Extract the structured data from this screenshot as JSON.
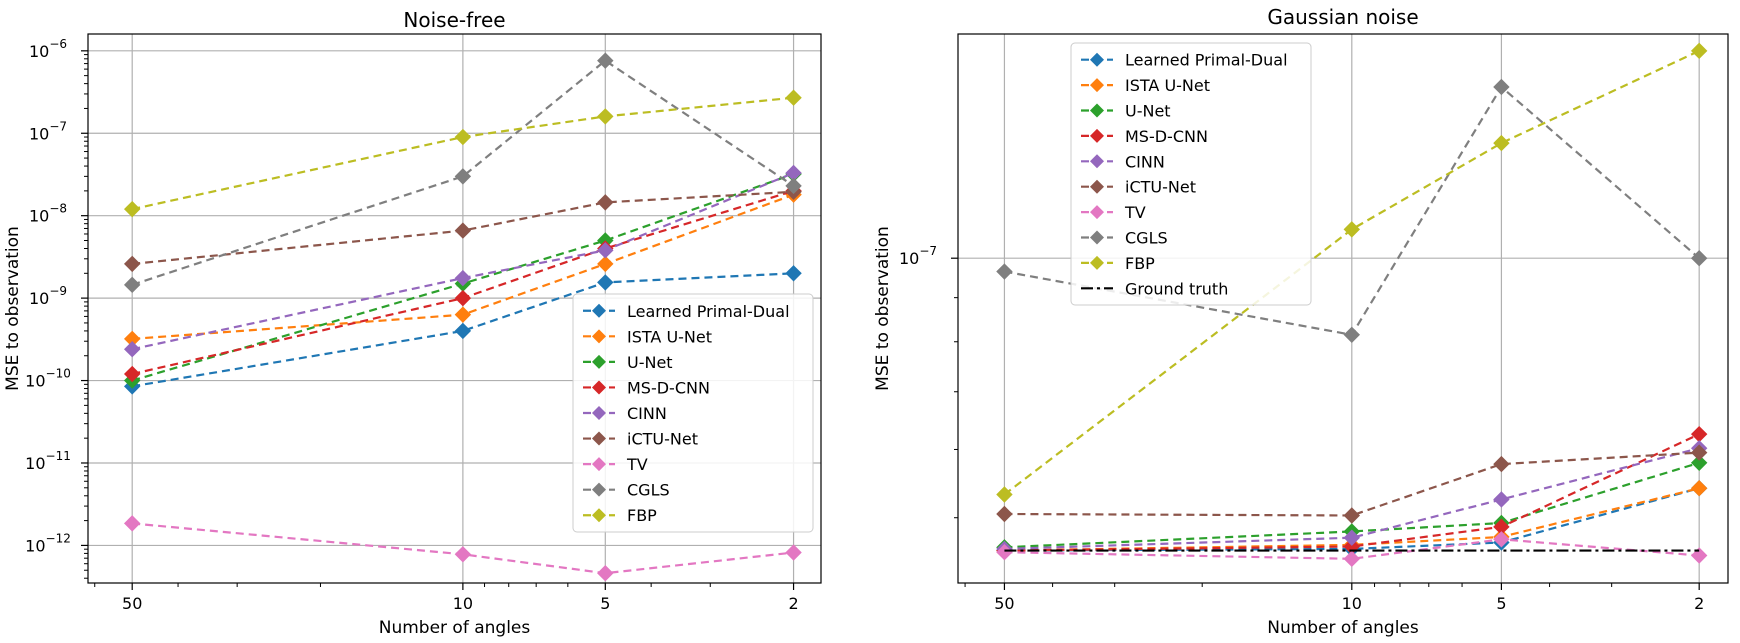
{
  "figure": {
    "description": ""
  },
  "chart_data": [
    {
      "type": "line",
      "title": "Noise-free",
      "xlabel": "Number of angles",
      "ylabel": "MSE to observation",
      "x_scale": "log-reversed",
      "y_scale": "log",
      "x_ticks": [
        50,
        10,
        5,
        2
      ],
      "x_tick_labels": [
        "50",
        "10",
        "5",
        "2"
      ],
      "xlim": [
        62,
        1.75
      ],
      "ylim": [
        3.5e-13,
        1.6e-06
      ],
      "y_ticks": [
        1e-12,
        1e-11,
        1e-10,
        1e-09,
        1e-08,
        1e-07,
        1e-06
      ],
      "y_tick_labels": [
        {
          "base": "10",
          "exp": "−12"
        },
        {
          "base": "10",
          "exp": "−11"
        },
        {
          "base": "10",
          "exp": "−10"
        },
        {
          "base": "10",
          "exp": "−9"
        },
        {
          "base": "10",
          "exp": "−8"
        },
        {
          "base": "10",
          "exp": "−7"
        },
        {
          "base": "10",
          "exp": "−6"
        }
      ],
      "grid": true,
      "legend_position": "lower-right",
      "x": [
        50,
        10,
        5,
        2
      ],
      "series": [
        {
          "name": "Learned Primal-Dual",
          "color": "#1f77b4",
          "values": [
            8.5e-11,
            4e-10,
            1.55e-09,
            2e-09
          ]
        },
        {
          "name": "ISTA U-Net",
          "color": "#ff7f0e",
          "values": [
            3.2e-10,
            6.3e-10,
            2.6e-09,
            1.8e-08
          ]
        },
        {
          "name": "U-Net",
          "color": "#2ca02c",
          "values": [
            1e-10,
            1.5e-09,
            5e-09,
            3.2e-08
          ]
        },
        {
          "name": "MS-D-CNN",
          "color": "#d62728",
          "values": [
            1.2e-10,
            1e-09,
            4e-09,
            2e-08
          ]
        },
        {
          "name": "CINN",
          "color": "#9467bd",
          "values": [
            2.4e-10,
            1.75e-09,
            3.8e-09,
            3.3e-08
          ]
        },
        {
          "name": "iCTU-Net",
          "color": "#8c564b",
          "values": [
            2.6e-09,
            6.6e-09,
            1.45e-08,
            1.95e-08
          ]
        },
        {
          "name": "TV",
          "color": "#e377c2",
          "values": [
            1.85e-12,
            7.8e-13,
            4.6e-13,
            8.2e-13
          ]
        },
        {
          "name": "CGLS",
          "color": "#7f7f7f",
          "values": [
            1.45e-09,
            3e-08,
            7.6e-07,
            2.3e-08
          ]
        },
        {
          "name": "FBP",
          "color": "#bcbd22",
          "values": [
            1.2e-08,
            9e-08,
            1.6e-07,
            2.7e-07
          ]
        }
      ]
    },
    {
      "type": "line",
      "title": "Gaussian noise",
      "xlabel": "Number of angles",
      "ylabel": "MSE to observation",
      "x_scale": "log-reversed",
      "y_scale": "log",
      "x_ticks": [
        50,
        10,
        5,
        2
      ],
      "x_tick_labels": [
        "50",
        "10",
        "5",
        "2"
      ],
      "xlim": [
        62,
        1.75
      ],
      "ylim": [
        4.2e-08,
        1.82e-07
      ],
      "y_ticks": [
        1e-07
      ],
      "y_tick_labels": [
        {
          "base": "10",
          "exp": "−7"
        }
      ],
      "grid": true,
      "legend_position": "upper-left",
      "x": [
        50,
        10,
        5,
        2
      ],
      "series": [
        {
          "name": "Learned Primal-Dual",
          "color": "#1f77b4",
          "values": [
            4.58e-08,
            4.6e-08,
            4.68e-08,
            5.41e-08
          ]
        },
        {
          "name": "ISTA U-Net",
          "color": "#ff7f0e",
          "values": [
            4.58e-08,
            4.65e-08,
            4.75e-08,
            5.41e-08
          ]
        },
        {
          "name": "U-Net",
          "color": "#2ca02c",
          "values": [
            4.62e-08,
            4.82e-08,
            4.93e-08,
            5.79e-08
          ]
        },
        {
          "name": "MS-D-CNN",
          "color": "#d62728",
          "values": [
            4.58e-08,
            4.63e-08,
            4.88e-08,
            6.25e-08
          ]
        },
        {
          "name": "CINN",
          "color": "#9467bd",
          "values": [
            4.6e-08,
            4.74e-08,
            5.25e-08,
            6.02e-08
          ]
        },
        {
          "name": "iCTU-Net",
          "color": "#8c564b",
          "values": [
            5.05e-08,
            5.03e-08,
            5.77e-08,
            5.95e-08
          ]
        },
        {
          "name": "TV",
          "color": "#e377c2",
          "values": [
            4.56e-08,
            4.48e-08,
            4.72e-08,
            4.52e-08
          ]
        },
        {
          "name": "CGLS",
          "color": "#7f7f7f",
          "values": [
            9.65e-08,
            8.15e-08,
            1.58e-07,
            1e-07
          ]
        },
        {
          "name": "FBP",
          "color": "#bcbd22",
          "values": [
            5.32e-08,
            1.08e-07,
            1.36e-07,
            1.74e-07
          ]
        },
        {
          "name": "Ground truth",
          "color": "#000000",
          "dash": "dashdot",
          "marker": false,
          "values": [
            4.58e-08,
            4.58e-08,
            4.58e-08,
            4.58e-08
          ]
        }
      ]
    }
  ]
}
